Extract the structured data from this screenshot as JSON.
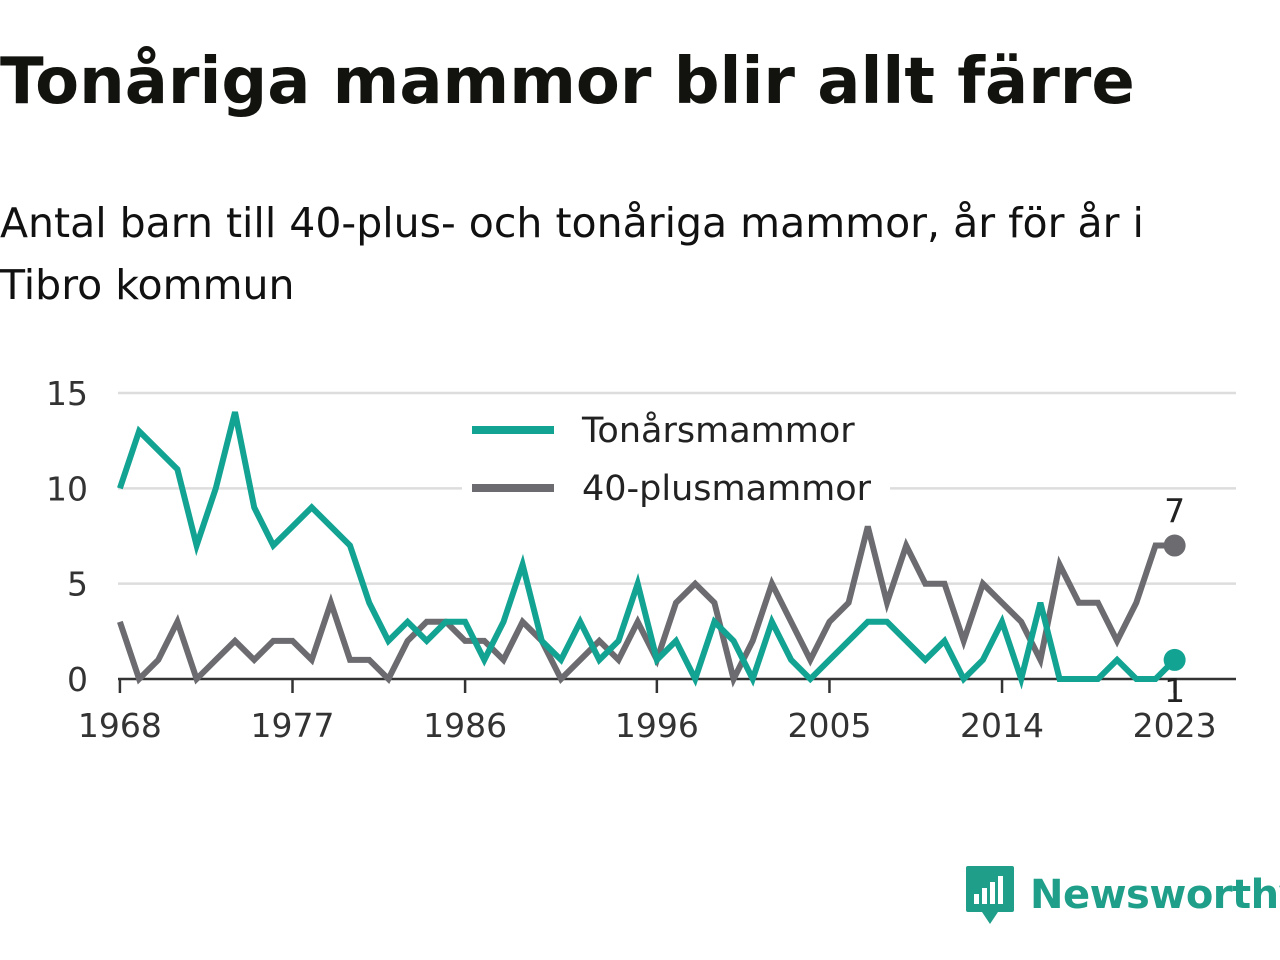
{
  "title": "Tonåriga mammor blir allt färre",
  "subtitle": "Antal barn till 40-plus- och tonåriga mammor, år för år i Tibro kommun",
  "brand": {
    "name": "Newsworthy",
    "icon": "newsworthy-logo-icon",
    "color": "#1f9f8a"
  },
  "chart_data": {
    "type": "line",
    "title": "Tonåriga mammor blir allt färre",
    "subtitle": "Antal barn till 40-plus- och tonåriga mammor, år för år i Tibro kommun",
    "xlabel": "",
    "ylabel": "",
    "x": [
      1968,
      1969,
      1970,
      1971,
      1972,
      1973,
      1974,
      1975,
      1976,
      1977,
      1978,
      1979,
      1980,
      1981,
      1982,
      1983,
      1984,
      1985,
      1986,
      1987,
      1988,
      1989,
      1990,
      1991,
      1992,
      1993,
      1994,
      1995,
      1996,
      1997,
      1998,
      1999,
      2000,
      2001,
      2002,
      2003,
      2004,
      2005,
      2006,
      2007,
      2008,
      2009,
      2010,
      2011,
      2012,
      2013,
      2014,
      2015,
      2016,
      2017,
      2018,
      2019,
      2020,
      2021,
      2022,
      2023
    ],
    "x_ticks": [
      1968,
      1977,
      1986,
      1996,
      2005,
      2014,
      2023
    ],
    "xlim": [
      1967.9,
      2026.2
    ],
    "y_ticks": [
      0,
      5,
      10,
      15
    ],
    "ylim": [
      0,
      15
    ],
    "grid": true,
    "legend_position": "top-center",
    "series": [
      {
        "name": "Tonårsmammor",
        "color": "#12a393",
        "values": [
          10,
          13,
          12,
          11,
          7,
          10,
          14,
          9,
          7,
          8,
          9,
          8,
          7,
          4,
          2,
          3,
          2,
          3,
          3,
          1,
          3,
          6,
          2,
          1,
          3,
          1,
          2,
          5,
          1,
          2,
          0,
          3,
          2,
          0,
          3,
          1,
          0,
          1,
          2,
          3,
          3,
          2,
          1,
          2,
          0,
          1,
          3,
          0,
          4,
          0,
          0,
          0,
          1,
          0,
          0,
          1
        ],
        "end_label": "1"
      },
      {
        "name": "40-plusmammor",
        "color": "#6c6b70",
        "values": [
          3,
          0,
          1,
          3,
          0,
          1,
          2,
          1,
          2,
          2,
          1,
          4,
          1,
          1,
          0,
          2,
          3,
          3,
          2,
          2,
          1,
          3,
          2,
          0,
          1,
          2,
          1,
          3,
          1,
          4,
          5,
          4,
          0,
          2,
          5,
          3,
          1,
          3,
          4,
          8,
          4,
          7,
          5,
          5,
          2,
          5,
          4,
          3,
          1,
          6,
          4,
          4,
          2,
          4,
          7,
          7
        ],
        "end_label": "7"
      }
    ]
  }
}
